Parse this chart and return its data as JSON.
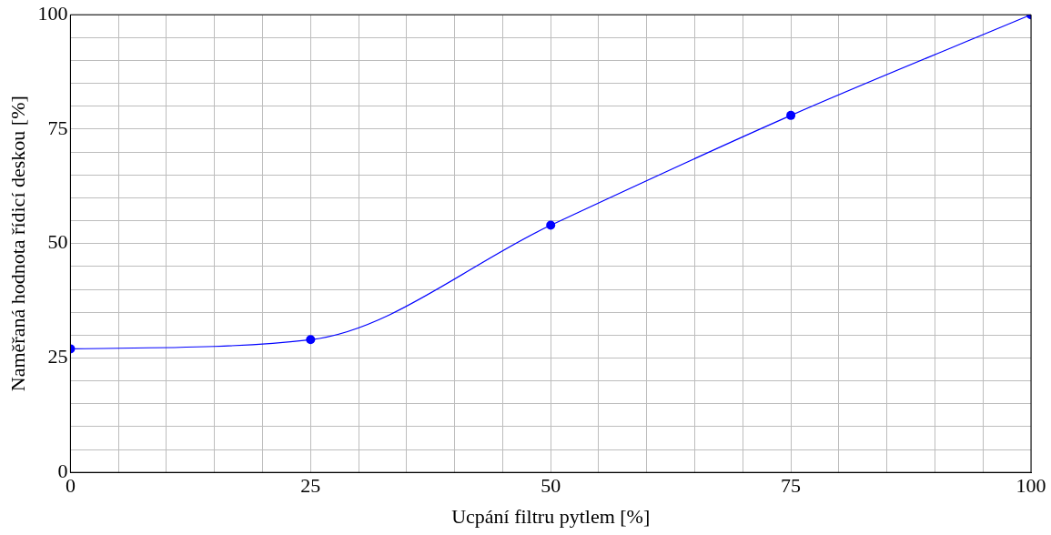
{
  "chart_data": {
    "type": "line",
    "xlabel": "Ucpání filtru pytlem [%]",
    "ylabel": "Naměřaná hodnota řídicí deskou [%]",
    "x": [
      0,
      25,
      50,
      75,
      100
    ],
    "series": [
      {
        "color": "#0000ff",
        "values": [
          27,
          29,
          54,
          78,
          100
        ]
      }
    ],
    "xlim": [
      0,
      100
    ],
    "ylim": [
      0,
      100
    ],
    "xticks": [
      0,
      {
        "value": 5,
        "label": null
      },
      {
        "value": 10,
        "label": null
      },
      {
        "value": 15,
        "label": null
      },
      {
        "value": 20,
        "label": null
      },
      25,
      {
        "value": 30,
        "label": null
      },
      {
        "value": 35,
        "label": null
      },
      {
        "value": 40,
        "label": null
      },
      {
        "value": 45,
        "label": null
      },
      50,
      {
        "value": 55,
        "label": null
      },
      {
        "value": 60,
        "label": null
      },
      {
        "value": 65,
        "label": null
      },
      {
        "value": 70,
        "label": null
      },
      75,
      {
        "value": 80,
        "label": null
      },
      {
        "value": 85,
        "label": null
      },
      {
        "value": 90,
        "label": null
      },
      {
        "value": 95,
        "label": null
      },
      100
    ],
    "yticks": [
      0,
      {
        "value": 5,
        "label": null
      },
      {
        "value": 10,
        "label": null
      },
      {
        "value": 15,
        "label": null
      },
      {
        "value": 20,
        "label": null
      },
      25,
      {
        "value": 30,
        "label": null
      },
      {
        "value": 35,
        "label": null
      },
      {
        "value": 40,
        "label": null
      },
      {
        "value": 45,
        "label": null
      },
      50,
      {
        "value": 55,
        "label": null
      },
      {
        "value": 60,
        "label": null
      },
      {
        "value": 65,
        "label": null
      },
      {
        "value": 70,
        "label": null
      },
      75,
      {
        "value": 80,
        "label": null
      },
      {
        "value": 85,
        "label": null
      },
      {
        "value": 90,
        "label": null
      },
      {
        "value": 95,
        "label": null
      },
      100
    ],
    "grid": true,
    "legend": false,
    "marker": "circle",
    "line_style": "solid"
  }
}
